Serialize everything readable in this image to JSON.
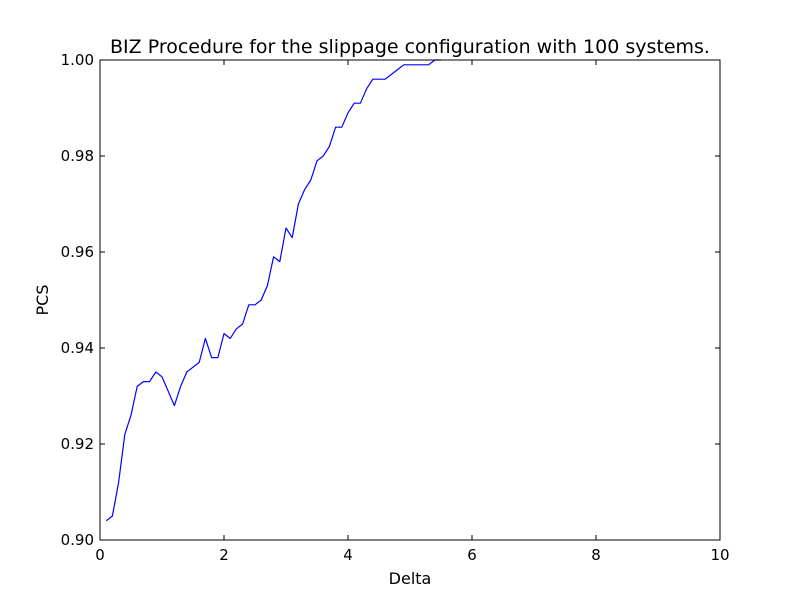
{
  "chart_data": {
    "type": "line",
    "title": "BIZ Procedure for the slippage configuration with 100 systems.",
    "xlabel": "Delta",
    "ylabel": "PCS",
    "xlim": [
      0,
      10
    ],
    "ylim": [
      0.9,
      1.0
    ],
    "x_ticks": [
      0,
      2,
      4,
      6,
      8,
      10
    ],
    "x_tick_labels": [
      "0",
      "2",
      "4",
      "6",
      "8",
      "10"
    ],
    "y_ticks": [
      0.9,
      0.92,
      0.94,
      0.96,
      0.98,
      1.0
    ],
    "y_tick_labels": [
      "0.90",
      "0.92",
      "0.94",
      "0.96",
      "0.98",
      "1.00"
    ],
    "grid": false,
    "series": [
      {
        "color": "#0000ff",
        "x": [
          0.1,
          0.2,
          0.3,
          0.4,
          0.5,
          0.6,
          0.7,
          0.8,
          0.9,
          1.0,
          1.1,
          1.2,
          1.3,
          1.4,
          1.5,
          1.6,
          1.7,
          1.8,
          1.9,
          2.0,
          2.1,
          2.2,
          2.3,
          2.4,
          2.5,
          2.6,
          2.7,
          2.8,
          2.9,
          3.0,
          3.1,
          3.2,
          3.3,
          3.4,
          3.5,
          3.6,
          3.7,
          3.8,
          3.9,
          4.0,
          4.1,
          4.2,
          4.3,
          4.4,
          4.5,
          4.6,
          4.7,
          4.8,
          4.9,
          5.0,
          5.1,
          5.2,
          5.3,
          5.4,
          5.5
        ],
        "y": [
          0.904,
          0.905,
          0.912,
          0.922,
          0.926,
          0.932,
          0.933,
          0.933,
          0.935,
          0.934,
          0.931,
          0.928,
          0.932,
          0.935,
          0.936,
          0.937,
          0.942,
          0.938,
          0.938,
          0.943,
          0.942,
          0.944,
          0.945,
          0.949,
          0.949,
          0.95,
          0.953,
          0.959,
          0.958,
          0.965,
          0.963,
          0.97,
          0.973,
          0.975,
          0.979,
          0.98,
          0.982,
          0.986,
          0.986,
          0.989,
          0.991,
          0.991,
          0.994,
          0.996,
          0.996,
          0.996,
          0.997,
          0.998,
          0.999,
          0.999,
          0.999,
          0.999,
          0.999,
          1.0,
          1.0
        ]
      }
    ]
  }
}
